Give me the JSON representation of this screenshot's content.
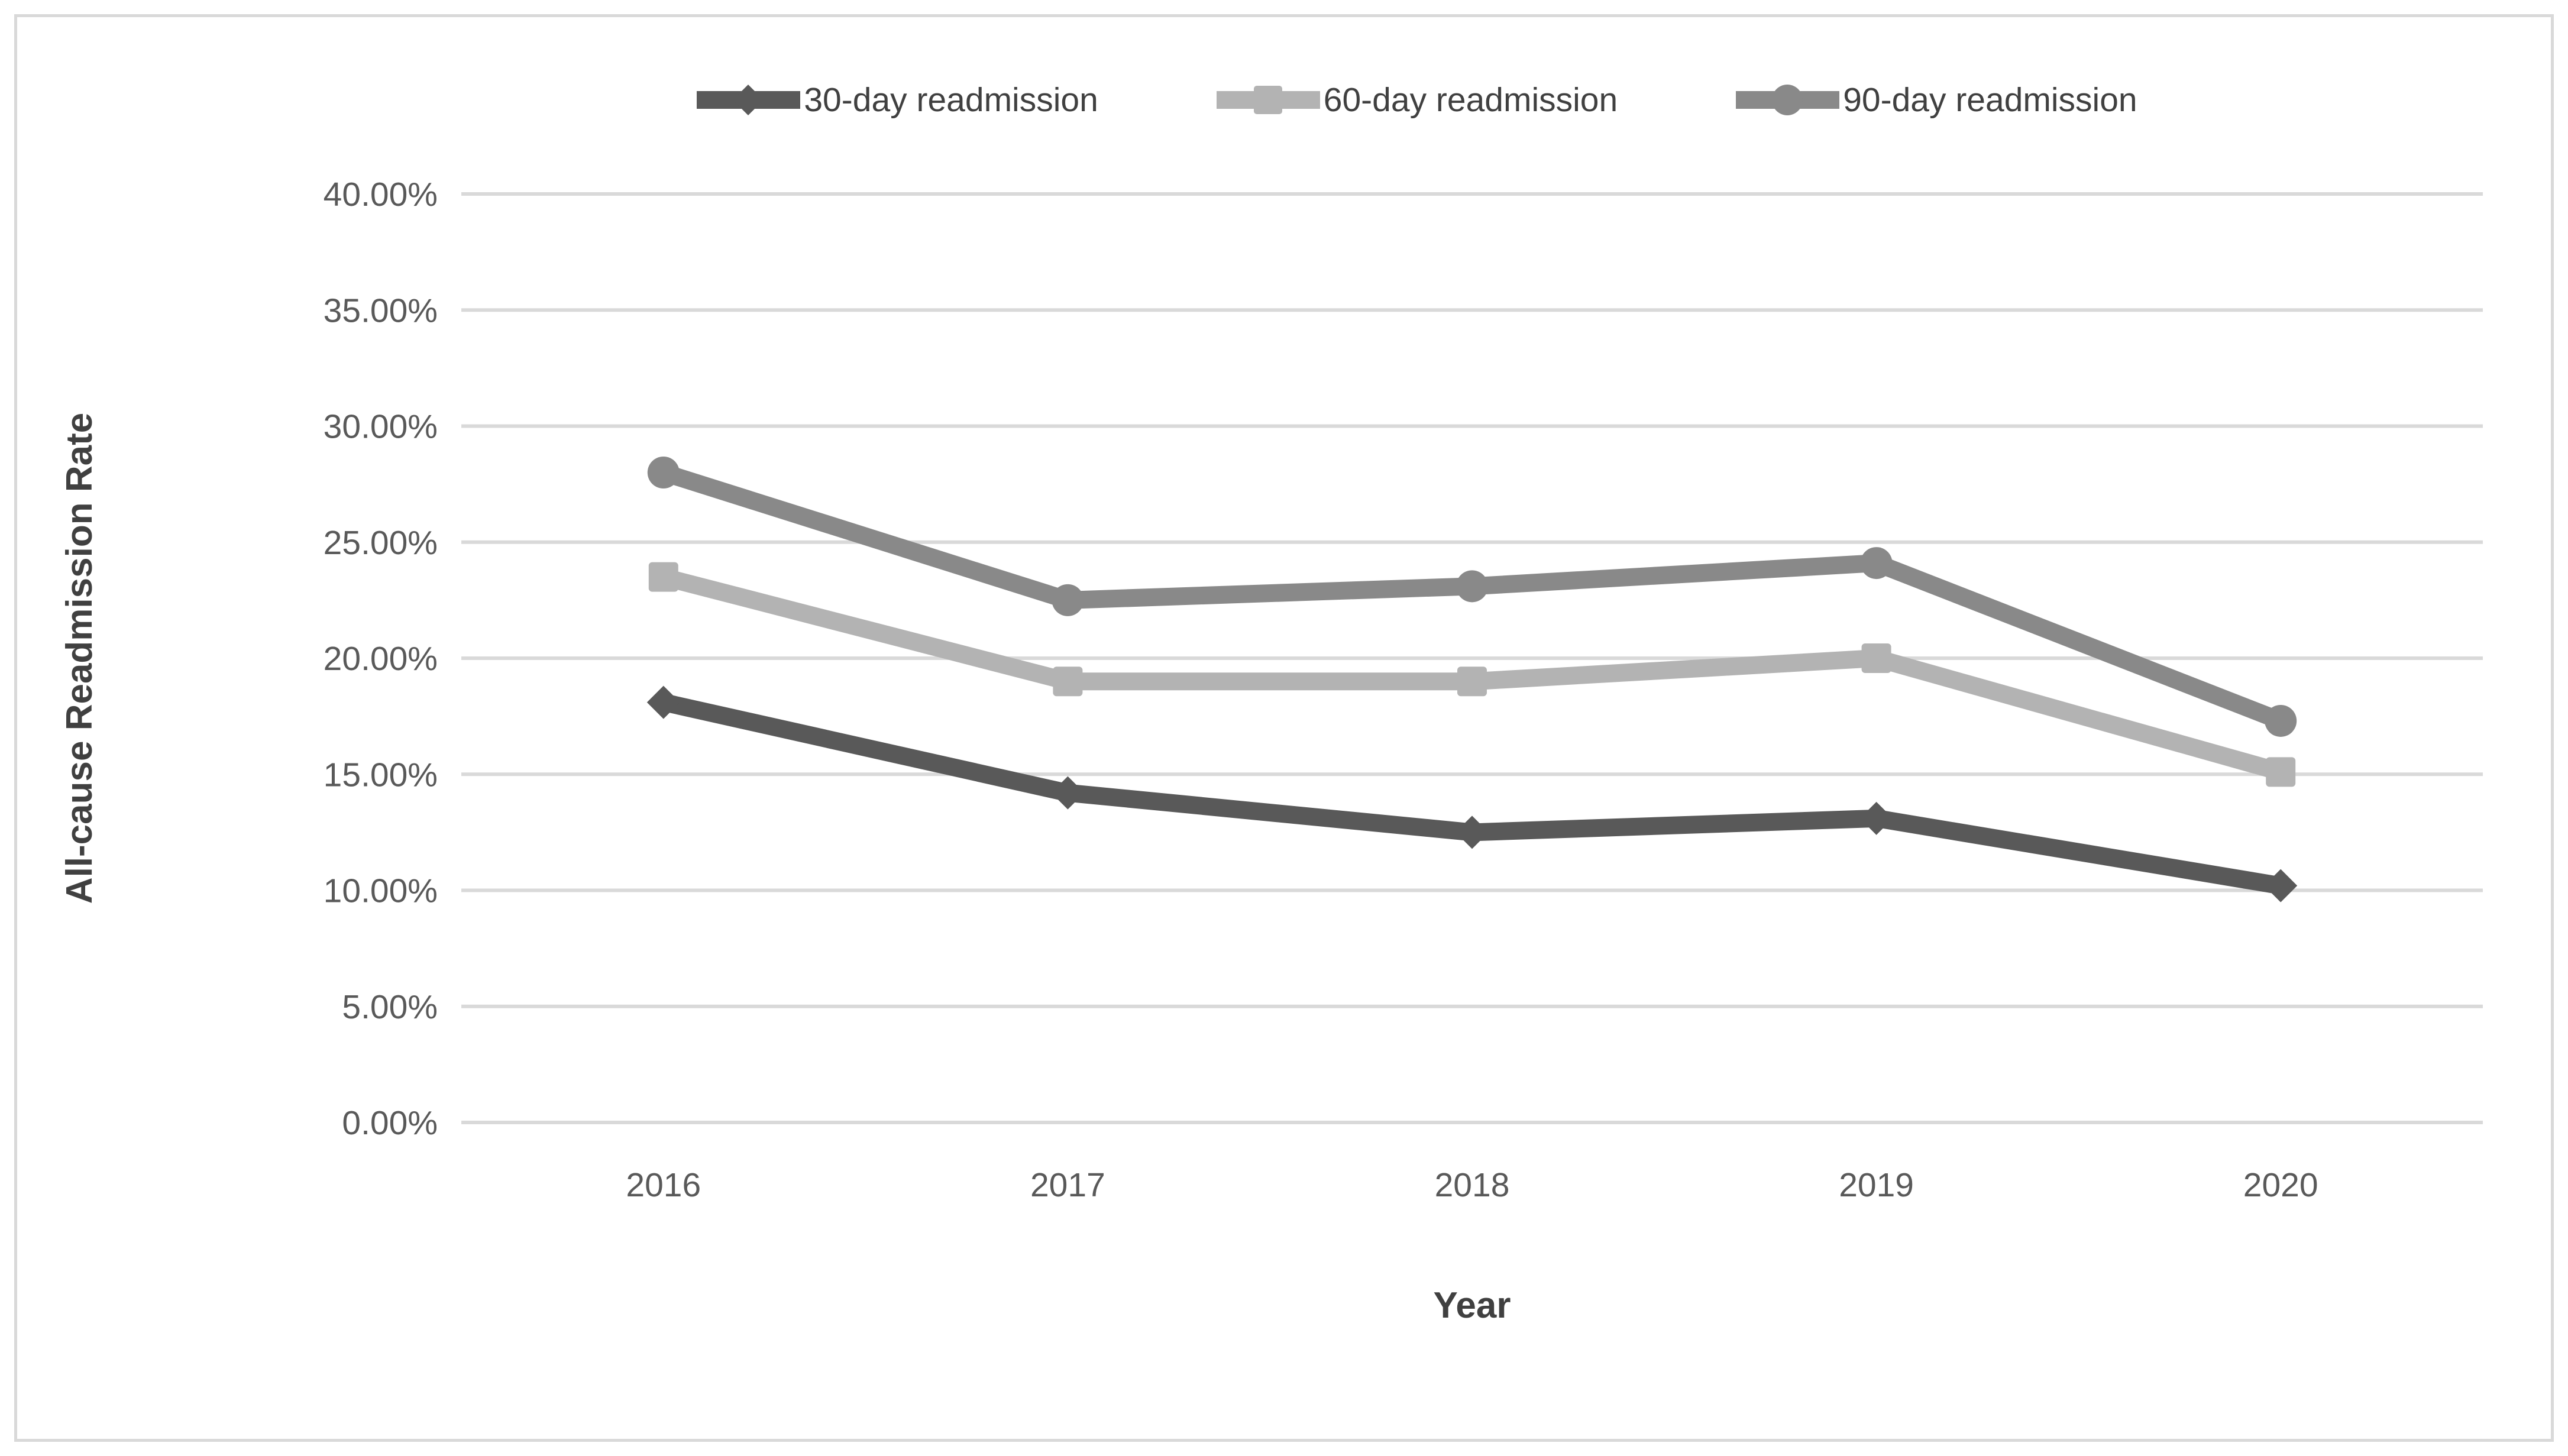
{
  "chart_data": {
    "type": "line",
    "title": "",
    "categories": [
      "2016",
      "2017",
      "2018",
      "2019",
      "2020"
    ],
    "series": [
      {
        "name": "30-day readmission",
        "marker": "diamond",
        "color": "#595959",
        "values": [
          18.1,
          14.2,
          12.5,
          13.1,
          10.2
        ]
      },
      {
        "name": "60-day readmission",
        "marker": "square",
        "color": "#b3b3b3",
        "values": [
          23.5,
          19.0,
          19.0,
          20.0,
          15.1
        ]
      },
      {
        "name": "90-day readmission",
        "marker": "circle",
        "color": "#898989",
        "values": [
          28.0,
          22.5,
          23.1,
          24.1,
          17.3
        ]
      }
    ],
    "xlabel": "Year",
    "ylabel": "All-cause Readmission Rate",
    "ylim": [
      0,
      40
    ],
    "y_tick_step": 5,
    "y_tick_labels": [
      "0.00%",
      "5.00%",
      "10.00%",
      "15.00%",
      "20.00%",
      "25.00%",
      "30.00%",
      "35.00%",
      "40.00%"
    ],
    "grid": "horizontal",
    "legend_position": "top",
    "gridline_color": "#d9d9d9",
    "axis_text_color": "#595959",
    "axis_title_color": "#404040",
    "border_color": "#d9d9d9"
  }
}
